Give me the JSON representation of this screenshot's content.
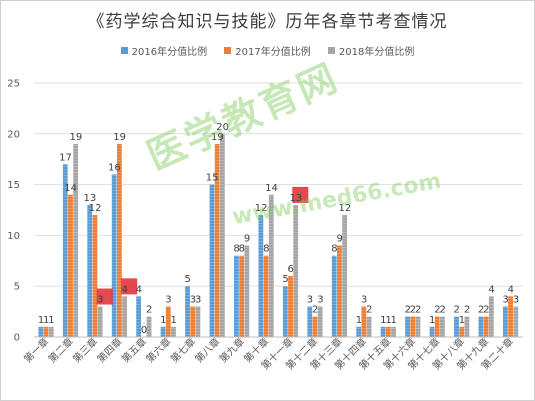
{
  "chart_data": {
    "type": "bar",
    "title": "《药学综合知识与技能》历年各章节考查情况",
    "xlabel": "",
    "ylabel": "",
    "ylim": [
      0,
      25
    ],
    "yticks": [
      0,
      5,
      10,
      15,
      20,
      25
    ],
    "grid": true,
    "legend_position": "top",
    "categories": [
      "第一章",
      "第二章",
      "第三章",
      "第四章",
      "第五章",
      "第六章",
      "第七章",
      "第八章",
      "第九章",
      "第十章",
      "第十一章",
      "第十二章",
      "第十三章",
      "第十四章",
      "第十五章",
      "第十六章",
      "第十七章",
      "第十八章",
      "第十九章",
      "第二十章"
    ],
    "series": [
      {
        "name": "2016年分值比例",
        "color": "#5b9bd5",
        "values": [
          1,
          17,
          13,
          16,
          4,
          1,
          5,
          15,
          8,
          12,
          5,
          3,
          8,
          1,
          1,
          2,
          1,
          2,
          2,
          3
        ]
      },
      {
        "name": "2017年分值比例",
        "color": "#ed7d31",
        "values": [
          1,
          14,
          12,
          19,
          0,
          3,
          3,
          19,
          8,
          8,
          6,
          2,
          9,
          3,
          1,
          2,
          2,
          1,
          2,
          4
        ]
      },
      {
        "name": "2018年分值比例",
        "color": "#a5a5a5",
        "values": [
          1,
          19,
          3,
          4,
          2,
          1,
          3,
          20,
          9,
          14,
          13,
          3,
          12,
          2,
          1,
          2,
          2,
          2,
          4,
          3
        ]
      }
    ],
    "highlights": [
      {
        "category_index": 2,
        "series_index": 2
      },
      {
        "category_index": 3,
        "series_index": 2
      },
      {
        "category_index": 10,
        "series_index": 2
      }
    ],
    "highlight_color": "#e0292e"
  },
  "watermark": {
    "text": "医学教育网",
    "url": "www.med66.com",
    "color": "#78c850"
  }
}
